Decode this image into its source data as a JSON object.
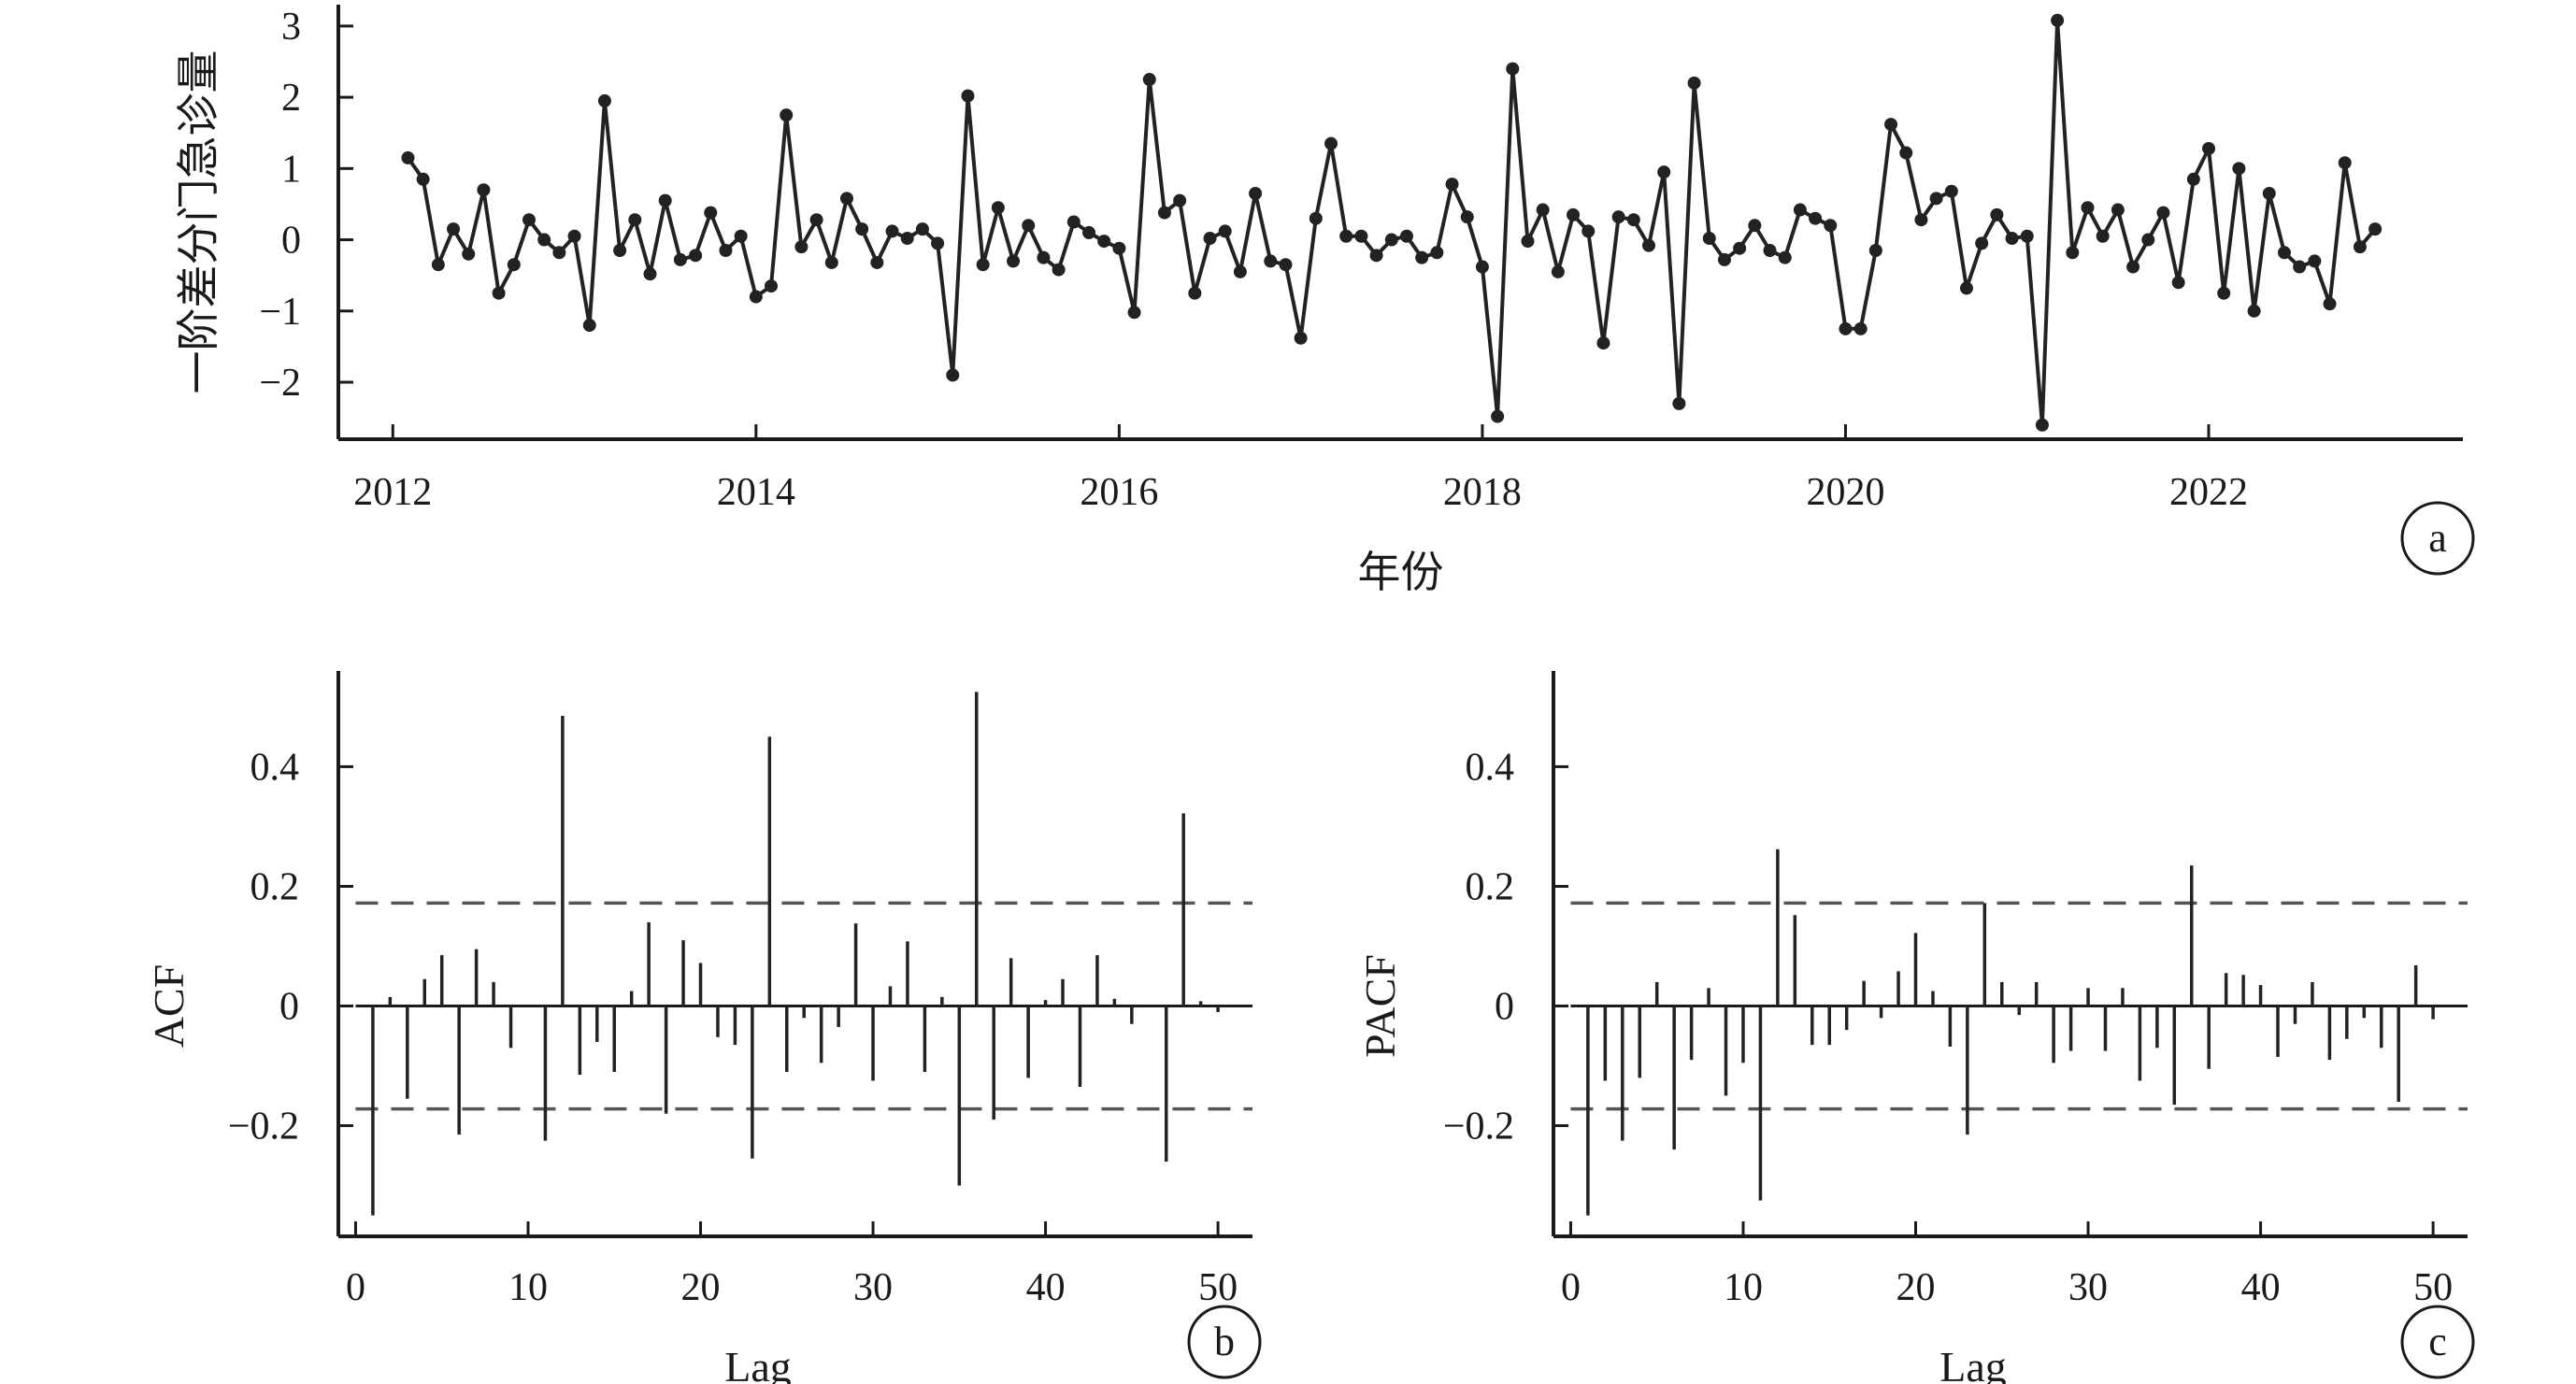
{
  "chart_data": [
    {
      "panel": "a",
      "type": "line",
      "title": "",
      "xlabel": "年份",
      "ylabel": "一阶差分门急诊量",
      "xlim": [
        2011.7,
        2023.4
      ],
      "ylim": [
        -2.8,
        3.3
      ],
      "xticks": [
        2012,
        2014,
        2016,
        2018,
        2020,
        2022
      ],
      "xtick_labels": [
        "2012",
        "2014",
        "2016",
        "2018",
        "2020",
        "2022"
      ],
      "yticks": [
        -2,
        -1,
        0,
        1,
        2,
        3
      ],
      "ytick_labels": [
        "−2",
        "−1",
        "0",
        "1",
        "2",
        "3"
      ],
      "marker": "circle",
      "colors": {
        "line": "#222222",
        "axis": "#1a1a1a"
      },
      "series": [
        {
          "x": [
            "2012-02",
            "2012-03",
            "2012-04",
            "2012-05",
            "2012-06",
            "2012-07",
            "2012-08",
            "2012-09",
            "2012-10",
            "2012-11",
            "2012-12",
            "2013-01",
            "2013-02",
            "2013-03",
            "2013-04",
            "2013-05",
            "2013-06",
            "2013-07",
            "2013-08",
            "2013-09",
            "2013-10",
            "2013-11",
            "2013-12",
            "2014-01",
            "2014-02",
            "2014-03",
            "2014-04",
            "2014-05",
            "2014-06",
            "2014-07",
            "2014-08",
            "2014-09",
            "2014-10",
            "2014-11",
            "2014-12",
            "2015-01",
            "2015-02",
            "2015-03",
            "2015-04",
            "2015-05",
            "2015-06",
            "2015-07",
            "2015-08",
            "2015-09",
            "2015-10",
            "2015-11",
            "2015-12",
            "2016-01",
            "2016-02",
            "2016-03",
            "2016-04",
            "2016-05",
            "2016-06",
            "2016-07",
            "2016-08",
            "2016-09",
            "2016-10",
            "2016-11",
            "2016-12",
            "2017-01",
            "2017-02",
            "2017-03",
            "2017-04",
            "2017-05",
            "2017-06",
            "2017-07",
            "2017-08",
            "2017-09",
            "2017-10",
            "2017-11",
            "2017-12",
            "2018-01",
            "2018-02",
            "2018-03",
            "2018-04",
            "2018-05",
            "2018-06",
            "2018-07",
            "2018-08",
            "2018-09",
            "2018-10",
            "2018-11",
            "2018-12",
            "2019-01",
            "2019-02",
            "2019-03",
            "2019-04",
            "2019-05",
            "2019-06",
            "2019-07",
            "2019-08",
            "2019-09",
            "2019-10",
            "2019-11",
            "2019-12",
            "2020-01",
            "2020-02",
            "2020-03",
            "2020-04",
            "2020-05",
            "2020-06",
            "2020-07",
            "2020-08",
            "2020-09",
            "2020-10",
            "2020-11",
            "2020-12",
            "2021-01",
            "2021-02",
            "2021-03",
            "2021-04",
            "2021-05",
            "2021-06",
            "2021-07",
            "2021-08",
            "2021-09",
            "2021-10",
            "2021-11",
            "2021-12",
            "2022-01",
            "2022-02",
            "2022-03",
            "2022-04",
            "2022-05",
            "2022-06",
            "2022-07",
            "2022-08",
            "2022-09",
            "2022-10",
            "2022-11",
            "2022-12"
          ],
          "values": [
            1.15,
            0.85,
            -0.35,
            0.15,
            -0.2,
            0.7,
            -0.75,
            -0.35,
            0.28,
            0.0,
            -0.18,
            0.05,
            -1.2,
            1.95,
            -0.15,
            0.28,
            -0.48,
            0.55,
            -0.28,
            -0.22,
            0.38,
            -0.15,
            0.05,
            -0.8,
            -0.65,
            1.75,
            -0.1,
            0.28,
            -0.32,
            0.58,
            0.15,
            -0.32,
            0.12,
            0.02,
            0.15,
            -0.05,
            -1.9,
            2.02,
            -0.35,
            0.45,
            -0.3,
            0.2,
            -0.25,
            -0.42,
            0.25,
            0.1,
            -0.02,
            -0.12,
            -1.02,
            2.25,
            0.38,
            0.55,
            -0.75,
            0.02,
            0.12,
            -0.45,
            0.65,
            -0.3,
            -0.35,
            -1.38,
            0.3,
            1.35,
            0.05,
            0.05,
            -0.22,
            0.0,
            0.05,
            -0.25,
            -0.18,
            0.78,
            0.32,
            -0.38,
            -2.48,
            2.4,
            -0.02,
            0.42,
            -0.45,
            0.35,
            0.12,
            -1.45,
            0.32,
            0.28,
            -0.08,
            0.95,
            -2.3,
            2.2,
            0.02,
            -0.28,
            -0.12,
            0.2,
            -0.15,
            -0.25,
            0.42,
            0.3,
            0.2,
            -1.25,
            -1.25,
            -0.15,
            1.62,
            1.22,
            0.28,
            0.58,
            0.68,
            -0.68,
            -0.05,
            0.35,
            0.02,
            0.05,
            -2.6,
            3.08,
            -0.18,
            0.45,
            0.05,
            0.42,
            -0.38,
            0.0,
            0.38,
            -0.6,
            0.85,
            1.28,
            -0.75,
            1.0,
            -1.0,
            0.65,
            -0.18,
            -0.38,
            -0.3,
            -0.9,
            1.08,
            -0.1,
            0.15
          ]
        }
      ]
    },
    {
      "panel": "b",
      "type": "bar",
      "title": "",
      "xlabel": "Lag",
      "ylabel": "ACF",
      "xlim": [
        -1,
        52
      ],
      "ylim": [
        -0.385,
        0.56
      ],
      "xticks": [
        0,
        10,
        20,
        30,
        40,
        50
      ],
      "xtick_labels": [
        "0",
        "10",
        "20",
        "30",
        "40",
        "50"
      ],
      "yticks": [
        -0.2,
        0,
        0.2,
        0.4
      ],
      "ytick_labels": [
        "−0.2",
        "0",
        "0.2",
        "0.4"
      ],
      "confidence_bounds": [
        0.172,
        -0.172
      ],
      "x": [
        1,
        2,
        3,
        4,
        5,
        6,
        7,
        8,
        9,
        10,
        11,
        12,
        13,
        14,
        15,
        16,
        17,
        18,
        19,
        20,
        21,
        22,
        23,
        24,
        25,
        26,
        27,
        28,
        29,
        30,
        31,
        32,
        33,
        34,
        35,
        36,
        37,
        38,
        39,
        40,
        41,
        42,
        43,
        44,
        45,
        46,
        47,
        48,
        49,
        50
      ],
      "values": [
        -0.35,
        0.015,
        -0.155,
        0.045,
        0.085,
        -0.215,
        0.095,
        0.04,
        -0.07,
        0.0,
        -0.225,
        0.485,
        -0.115,
        -0.06,
        -0.11,
        0.025,
        0.14,
        -0.18,
        0.11,
        0.072,
        -0.052,
        -0.065,
        -0.255,
        0.45,
        -0.11,
        -0.02,
        -0.095,
        -0.035,
        0.138,
        -0.125,
        0.033,
        0.108,
        -0.11,
        0.015,
        -0.3,
        0.525,
        -0.19,
        0.08,
        -0.12,
        0.01,
        0.045,
        -0.135,
        0.085,
        0.012,
        -0.03,
        0.0,
        -0.26,
        0.322,
        0.008,
        -0.01
      ]
    },
    {
      "panel": "c",
      "type": "bar",
      "title": "",
      "xlabel": "Lag",
      "ylabel": "PACF",
      "xlim": [
        -1,
        52
      ],
      "ylim": [
        -0.385,
        0.56
      ],
      "xticks": [
        0,
        10,
        20,
        30,
        40,
        50
      ],
      "xtick_labels": [
        "0",
        "10",
        "20",
        "30",
        "40",
        "50"
      ],
      "yticks": [
        -0.2,
        0,
        0.2,
        0.4
      ],
      "ytick_labels": [
        "−0.2",
        "0",
        "0.2",
        "0.4"
      ],
      "confidence_bounds": [
        0.172,
        -0.172
      ],
      "x": [
        1,
        2,
        3,
        4,
        5,
        6,
        7,
        8,
        9,
        10,
        11,
        12,
        13,
        14,
        15,
        16,
        17,
        18,
        19,
        20,
        21,
        22,
        23,
        24,
        25,
        26,
        27,
        28,
        29,
        30,
        31,
        32,
        33,
        34,
        35,
        36,
        37,
        38,
        39,
        40,
        41,
        42,
        43,
        44,
        45,
        46,
        47,
        48,
        49,
        50
      ],
      "values": [
        -0.35,
        -0.125,
        -0.225,
        -0.12,
        0.04,
        -0.24,
        -0.09,
        0.03,
        -0.15,
        -0.095,
        -0.325,
        0.262,
        0.152,
        -0.065,
        -0.065,
        -0.04,
        0.042,
        -0.02,
        0.058,
        0.122,
        0.025,
        -0.068,
        -0.215,
        0.172,
        0.04,
        -0.015,
        0.04,
        -0.095,
        -0.075,
        0.03,
        -0.075,
        0.03,
        -0.125,
        -0.07,
        -0.165,
        0.235,
        -0.105,
        0.055,
        0.052,
        0.035,
        -0.085,
        -0.03,
        0.04,
        -0.09,
        -0.055,
        -0.02,
        -0.07,
        -0.16,
        0.068,
        -0.022
      ]
    }
  ],
  "panel_labels": {
    "a": "a",
    "b": "b",
    "c": "c"
  }
}
